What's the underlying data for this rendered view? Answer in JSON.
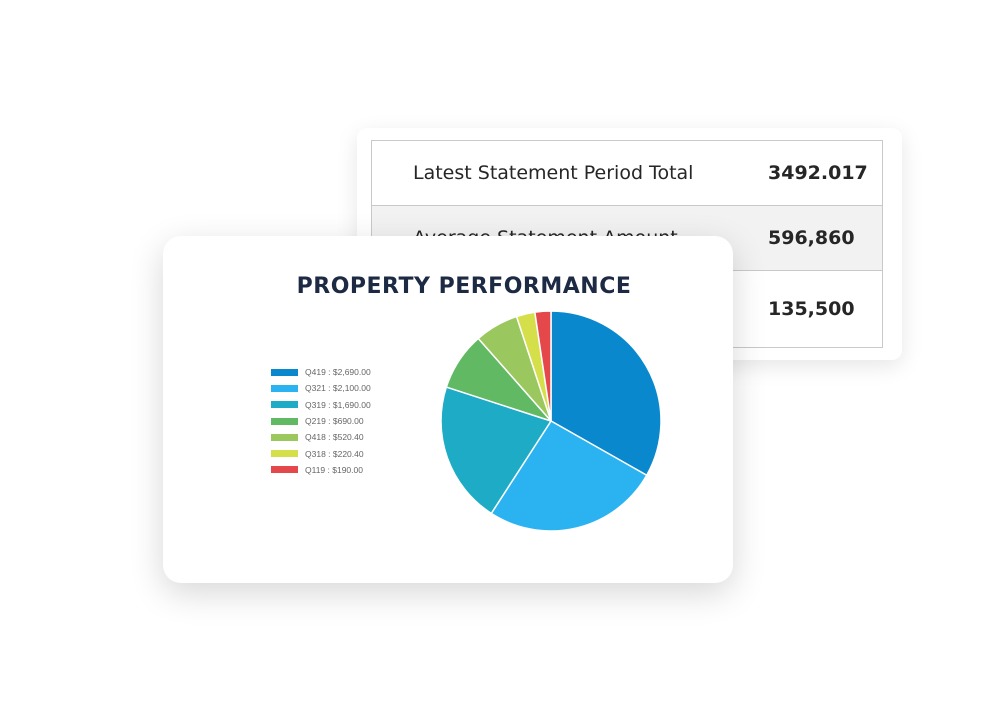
{
  "statement_table": {
    "rows": [
      {
        "label": "Latest Statement Period Total",
        "value": "3492.017"
      },
      {
        "label": "Average Statement Amount",
        "value": "596,860"
      },
      {
        "label": "",
        "value": "135,500"
      }
    ]
  },
  "chart_data": {
    "type": "pie",
    "title": "PROPERTY PERFORMANCE",
    "legend_position": "left",
    "slices": [
      {
        "label": "Q419 : $2,690.00",
        "category": "Q419",
        "value": 2690,
        "color": "#0a88ce"
      },
      {
        "label": "Q321 : $2,100.00",
        "category": "Q321",
        "value": 2100,
        "color": "#2bb2f0"
      },
      {
        "label": "Q319 : $1,690.00",
        "category": "Q319",
        "value": 1690,
        "color": "#1eabc5"
      },
      {
        "label": "Q219 : $690.00",
        "category": "Q219",
        "value": 690,
        "color": "#62b963"
      },
      {
        "label": "Q418 : $520.40",
        "category": "Q418",
        "value": 520.4,
        "color": "#9ac85f"
      },
      {
        "label": "Q318 : $220.40",
        "category": "Q318",
        "value": 220.4,
        "color": "#d5df4a"
      },
      {
        "label": "Q119 : $190.00",
        "category": "Q119",
        "value": 190,
        "color": "#e5484a"
      }
    ]
  }
}
